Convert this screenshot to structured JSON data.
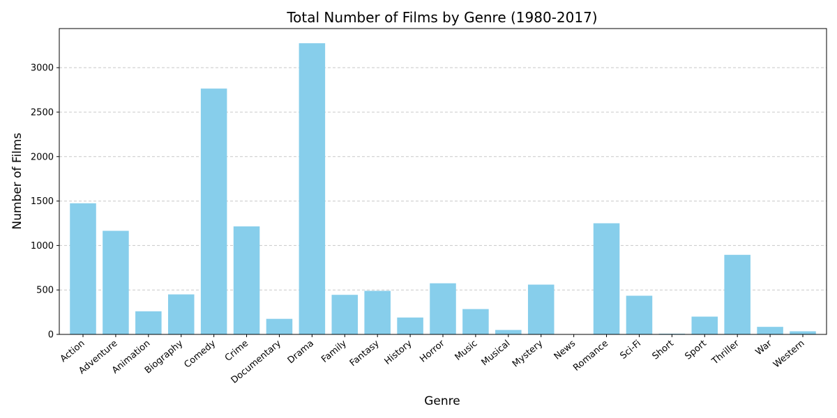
{
  "chart_data": {
    "type": "bar",
    "title": "Total Number of Films by Genre (1980-2017)",
    "xlabel": "Genre",
    "ylabel": "Number of Films",
    "categories": [
      "Action",
      "Adventure",
      "Animation",
      "Biography",
      "Comedy",
      "Crime",
      "Documentary",
      "Drama",
      "Family",
      "Fantasy",
      "History",
      "Horror",
      "Music",
      "Musical",
      "Mystery",
      "News",
      "Romance",
      "Sci-Fi",
      "Short",
      "Sport",
      "Thriller",
      "War",
      "Western"
    ],
    "values": [
      1475,
      1165,
      260,
      450,
      2765,
      1215,
      175,
      3275,
      445,
      490,
      190,
      575,
      285,
      50,
      560,
      2,
      1250,
      435,
      8,
      200,
      895,
      85,
      35
    ],
    "ylim": [
      0,
      3440
    ],
    "yticks": [
      0,
      500,
      1000,
      1500,
      2000,
      2500,
      3000
    ],
    "grid": "horizontal dashed",
    "bar_color": "#87CEEB"
  }
}
